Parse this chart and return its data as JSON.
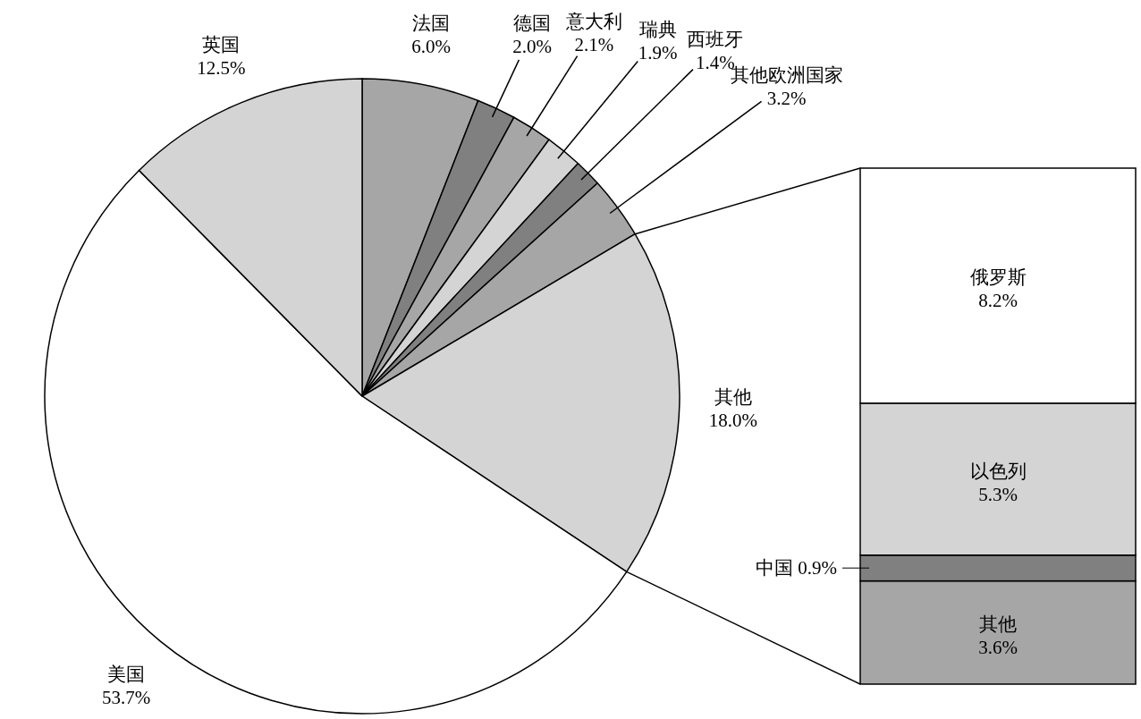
{
  "chart_data": [
    {
      "type": "pie",
      "categories": [
        "法国",
        "德国",
        "意大利",
        "瑞典",
        "西班牙",
        "其他欧洲国家",
        "其他",
        "美国",
        "英国"
      ],
      "values": [
        6.0,
        2.0,
        2.1,
        1.9,
        1.4,
        3.2,
        18.0,
        53.7,
        12.5
      ],
      "value_labels": [
        "6.0%",
        "2.0%",
        "2.1%",
        "1.9%",
        "1.4%",
        "3.2%",
        "18.0%",
        "53.7%",
        "12.5%"
      ],
      "colors": [
        "#a6a6a6",
        "#808080",
        "#a6a6a6",
        "#d4d4d4",
        "#808080",
        "#a6a6a6",
        "#d4d4d4",
        "#ffffff",
        "#d4d4d4"
      ]
    },
    {
      "type": "bar",
      "stacked": true,
      "categories": [
        null
      ],
      "data_labels": true,
      "series": [
        {
          "name": "其他",
          "color": "#a6a6a6",
          "values": [
            3.6
          ],
          "value_labels": [
            "3.6%"
          ]
        },
        {
          "name": "中国",
          "color": "#808080",
          "values": [
            0.9
          ],
          "value_labels": [
            "0.9%"
          ]
        },
        {
          "name": "以色列",
          "color": "#d4d4d4",
          "values": [
            5.3
          ],
          "value_labels": [
            "5.3%"
          ]
        },
        {
          "name": "俄罗斯",
          "color": "#ffffff",
          "values": [
            8.2
          ],
          "value_labels": [
            "8.2%"
          ]
        }
      ]
    }
  ]
}
